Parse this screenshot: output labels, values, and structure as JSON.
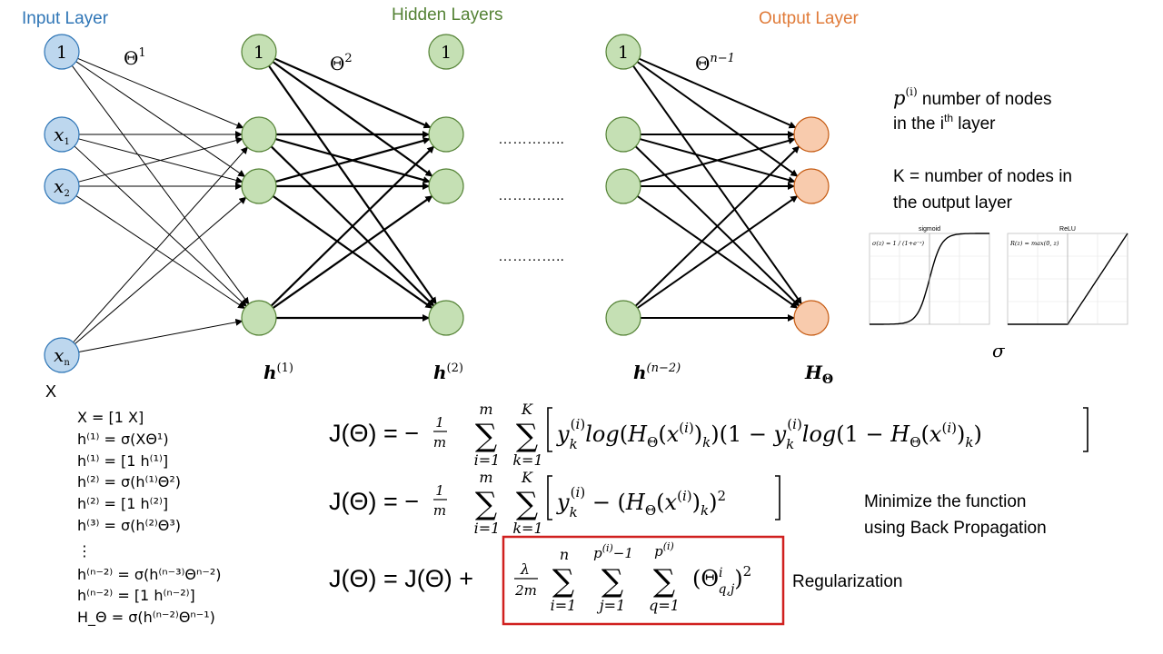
{
  "headers": {
    "input": "Input Layer",
    "hidden": "Hidden Layers",
    "output": "Output Layer"
  },
  "colors": {
    "input_header": "#2e75b6",
    "hidden_header": "#548235",
    "output_header": "#e07b39",
    "input_node_fill": "#bdd7ee",
    "input_node_stroke": "#2e75b6",
    "hidden_node_fill": "#c5e0b4",
    "hidden_node_stroke": "#548235",
    "output_node_fill": "#f8cbad",
    "output_node_stroke": "#c55a11",
    "reg_box": "#d0201f"
  },
  "nodes": {
    "bias": "1",
    "x1_base": "x",
    "x1_sub": "1",
    "x2_base": "x",
    "x2_sub": "2",
    "xn_base": "x",
    "xn_sub": "n"
  },
  "weights": {
    "theta1": {
      "base": "Θ",
      "sup": "1"
    },
    "theta2": {
      "base": "Θ",
      "sup": "2"
    },
    "thetan": {
      "base": "Θ",
      "sup": "n−1"
    }
  },
  "dots": [
    "…………..",
    "…………..",
    "………….."
  ],
  "layer_labels": {
    "h1": {
      "base": "h",
      "sup": "(1)"
    },
    "h2": {
      "base": "h",
      "sup": "(2)"
    },
    "hn": {
      "base": "h",
      "sup": "(n−2)"
    },
    "H": {
      "base": "H",
      "sub": "Θ"
    },
    "X": "X"
  },
  "notes": {
    "p_sym": "p",
    "p_sup": "(i)",
    "p_line1": " number of nodes",
    "p_line2a": "in the i",
    "p_line2sup": "th",
    "p_line2b": "  layer",
    "k_line1": "K = number of nodes in",
    "k_line2": "the output layer",
    "sigma": "σ"
  },
  "activation_plots": [
    {
      "title": "sigmoid",
      "formula": "σ(z) = 1 / (1+e⁻ᶻ)",
      "curve": "sigmoid",
      "xrange": [
        -10,
        10
      ],
      "yrange": [
        0,
        1
      ]
    },
    {
      "title": "ReLU",
      "formula": "R(z) = max(0, z)",
      "curve": "relu",
      "xrange": [
        -10,
        10
      ],
      "yrange": [
        0,
        10
      ]
    }
  ],
  "forward_equations": [
    "X = [1  X]",
    "h⁽¹⁾ = σ(XΘ¹)",
    "h⁽¹⁾ = [1  h⁽¹⁾]",
    "h⁽²⁾ = σ(h⁽¹⁾Θ²)",
    "h⁽²⁾ = [1  h⁽²⁾]",
    "h⁽³⁾ = σ(h⁽²⁾Θ³)",
    "⋮",
    "h⁽ⁿ⁻²⁾ = σ(h⁽ⁿ⁻³⁾Θⁿ⁻²)",
    "h⁽ⁿ⁻²⁾ = [1  h⁽ⁿ⁻²⁾]",
    "H_Θ = σ(h⁽ⁿ⁻²⁾Θⁿ⁻¹)"
  ],
  "cost_function_1": {
    "lhs": "J(Θ) = −",
    "frac_num": "1",
    "frac_den": "m",
    "sum1_top": "m",
    "sum1_bot": "i=1",
    "sum2_top": "K",
    "sum2_bot": "k=1",
    "body": "y_k^(i) log(H_Θ(x^(i))_k)(1 − y_k^(i)) log(1 − H_Θ(x^(i))_k)"
  },
  "cost_function_2": {
    "lhs": "J(Θ) = −",
    "frac_num": "1",
    "frac_den": "m",
    "sum1_top": "m",
    "sum1_bot": "i=1",
    "sum2_top": "K",
    "sum2_bot": "k=1",
    "body": "y_k^(i) − (H_Θ(x^(i))_k)²"
  },
  "cost_function_3": {
    "lhs": "J(Θ) = J(Θ) +",
    "frac_num": "λ",
    "frac_den": "2m",
    "sum1_top": "n",
    "sum1_bot": "i=1",
    "sum2_top": "p^(i)−1",
    "sum2_bot": "j=1",
    "sum3_top": "p^(i)",
    "sum3_bot": "q=1",
    "body": "(Θ^i_{q,j})²"
  },
  "side_notes": {
    "minimize_line1": "Minimize the function",
    "minimize_line2": "using Back Propagation",
    "regularization": "Regularization"
  }
}
